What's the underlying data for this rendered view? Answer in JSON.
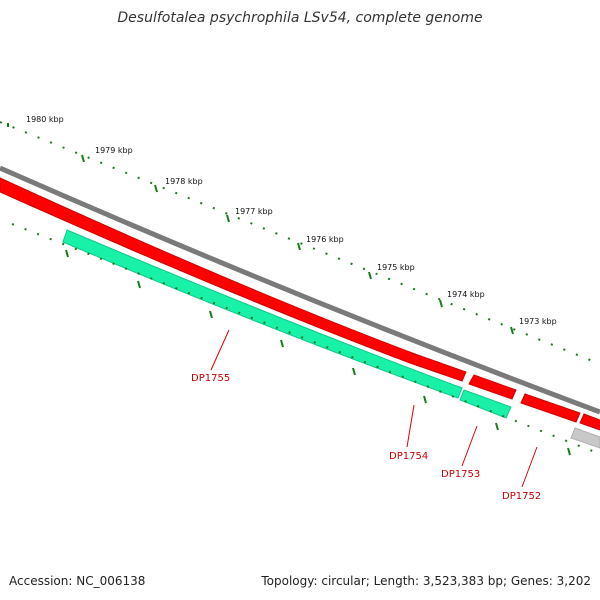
{
  "title": "Desulfotalea psychrophila LSv54, complete genome",
  "footer": {
    "accession": "Accession: NC_006138",
    "summary": "Topology: circular; Length: 3,523,383 bp; Genes: 3,202"
  },
  "ruler_labels": [
    "1980 kbp",
    "1979 kbp",
    "1978 kbp",
    "1977 kbp",
    "1976 kbp",
    "1975 kbp",
    "1974 kbp",
    "1973 kbp"
  ],
  "gene_labels": [
    "DP1755",
    "DP1754",
    "DP1753",
    "DP1752"
  ],
  "colors": {
    "forward_gene": "#ff0000",
    "reverse_gene": "#19f0a8",
    "backbone": "#7a7a7a",
    "other_feature": "#c8c8c8",
    "ticks": "#1a7a1a",
    "label_line": "#e00000"
  }
}
